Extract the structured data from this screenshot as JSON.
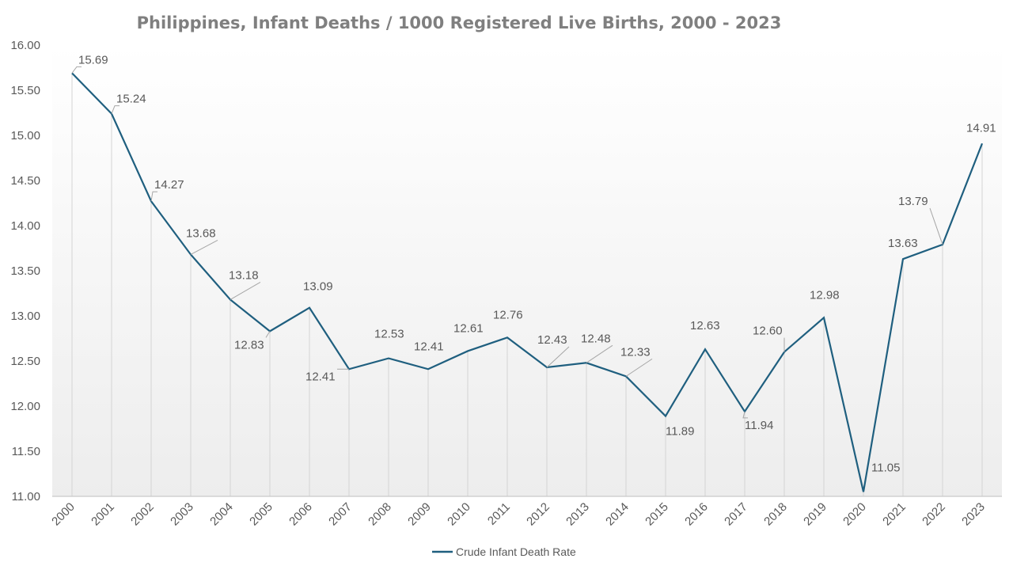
{
  "chart_data": {
    "type": "line",
    "title": "Philippines, Infant Deaths / 1000 Registered Live Births, 2000 - 2023",
    "xlabel": "",
    "ylabel": "",
    "ylim": [
      11.0,
      16.0
    ],
    "y_ticks": [
      "11.00",
      "11.50",
      "12.00",
      "12.50",
      "13.00",
      "13.50",
      "14.00",
      "14.50",
      "15.00",
      "15.50",
      "16.00"
    ],
    "grid": "vertical drop lines at each category",
    "legend": "bottom-center",
    "categories": [
      "2000",
      "2001",
      "2002",
      "2003",
      "2004",
      "2005",
      "2006",
      "2007",
      "2008",
      "2009",
      "2010",
      "2011",
      "2012",
      "2013",
      "2014",
      "2015",
      "2016",
      "2017",
      "2018",
      "2019",
      "2020",
      "2021",
      "2022",
      "2023"
    ],
    "series": [
      {
        "name": "Crude Infant Death Rate",
        "color": "#1f5f7f",
        "values": [
          15.69,
          15.24,
          14.27,
          13.68,
          13.18,
          12.83,
          13.09,
          12.41,
          12.53,
          12.41,
          12.61,
          12.76,
          12.43,
          12.48,
          12.33,
          11.89,
          12.63,
          11.94,
          12.6,
          12.98,
          11.05,
          13.63,
          13.79,
          14.91
        ],
        "labels": [
          "15.69",
          "15.24",
          "14.27",
          "13.68",
          "13.18",
          "12.83",
          "13.09",
          "12.41",
          "12.53",
          "12.41",
          "12.61",
          "12.76",
          "12.43",
          "12.48",
          "12.33",
          "11.89",
          "12.63",
          "11.94",
          "12.60",
          "12.98",
          "11.05",
          "13.63",
          "13.79",
          "14.91"
        ]
      }
    ]
  }
}
